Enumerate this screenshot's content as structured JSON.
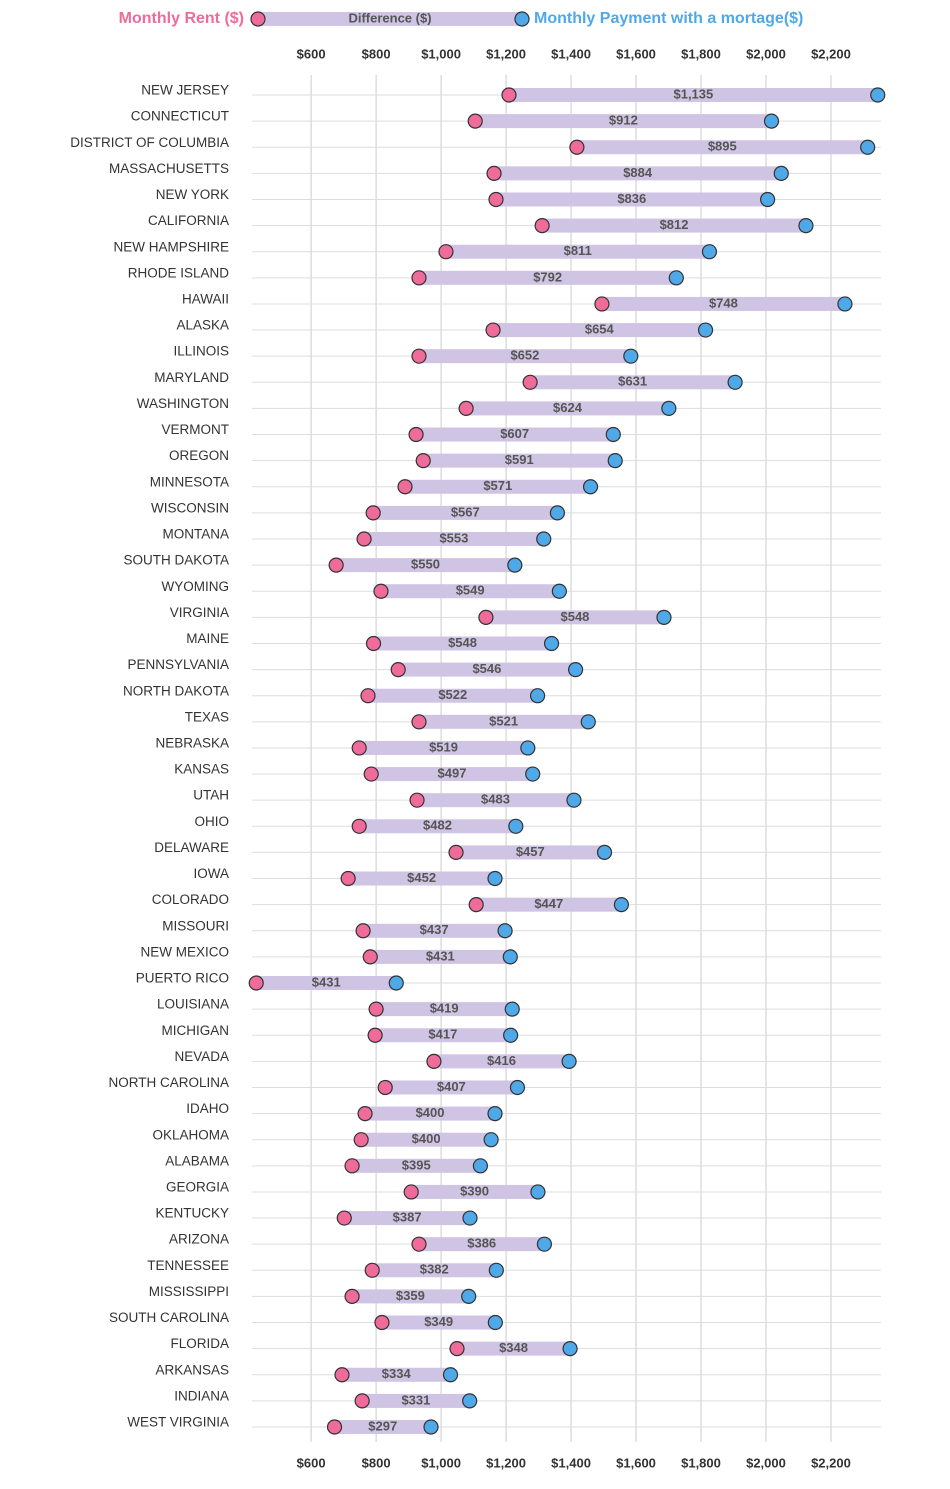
{
  "chart_data": {
    "type": "dumbbell",
    "categories": [
      "NEW JERSEY",
      "CONNECTICUT",
      "DISTRICT OF COLUMBIA",
      "MASSACHUSETTS",
      "NEW YORK",
      "CALIFORNIA",
      "NEW HAMPSHIRE",
      "RHODE ISLAND",
      "HAWAII",
      "ALASKA",
      "ILLINOIS",
      "MARYLAND",
      "WASHINGTON",
      "VERMONT",
      "OREGON",
      "MINNESOTA",
      "WISCONSIN",
      "MONTANA",
      "SOUTH DAKOTA",
      "WYOMING",
      "VIRGINIA",
      "MAINE",
      "PENNSYLVANIA",
      "NORTH DAKOTA",
      "TEXAS",
      "NEBRASKA",
      "KANSAS",
      "UTAH",
      "OHIO",
      "DELAWARE",
      "IOWA",
      "COLORADO",
      "MISSOURI",
      "NEW MEXICO",
      "PUERTO RICO",
      "LOUISIANA",
      "MICHIGAN",
      "NEVADA",
      "NORTH CAROLINA",
      "IDAHO",
      "OKLAHOMA",
      "ALABAMA",
      "GEORGIA",
      "KENTUCKY",
      "ARIZONA",
      "TENNESSEE",
      "MISSISSIPPI",
      "SOUTH CAROLINA",
      "FLORIDA",
      "ARKANSAS",
      "INDIANA",
      "WEST VIRGINIA"
    ],
    "series": [
      {
        "name": "Monthly Rent ($)",
        "color": "#ef6b9a",
        "values": [
          1209,
          1105,
          1418,
          1163,
          1169,
          1311,
          1015,
          932,
          1495,
          1160,
          932,
          1274,
          1077,
          923,
          945,
          889,
          791,
          763,
          677,
          815,
          1138,
          792,
          868,
          775,
          932,
          748,
          785,
          926,
          748,
          1046,
          714,
          1108,
          760,
          782,
          431,
          800,
          797,
          978,
          828,
          766,
          754,
          726,
          908,
          702,
          932,
          788,
          726,
          818,
          1049,
          695,
          757,
          672
        ]
      },
      {
        "name": "Difference ($)",
        "color": "#cfc4e3",
        "values": [
          1135,
          912,
          895,
          884,
          836,
          812,
          811,
          792,
          748,
          654,
          652,
          631,
          624,
          607,
          591,
          571,
          567,
          553,
          550,
          549,
          548,
          548,
          546,
          522,
          521,
          519,
          497,
          483,
          482,
          457,
          452,
          447,
          437,
          431,
          431,
          419,
          417,
          416,
          407,
          400,
          400,
          395,
          390,
          387,
          386,
          382,
          359,
          349,
          348,
          334,
          331,
          297
        ],
        "value_labels": [
          "$1,135",
          "$912",
          "$895",
          "$884",
          "$836",
          "$812",
          "$811",
          "$792",
          "$748",
          "$654",
          "$652",
          "$631",
          "$624",
          "$607",
          "$591",
          "$571",
          "$567",
          "$553",
          "$550",
          "$549",
          "$548",
          "$548",
          "$546",
          "$522",
          "$521",
          "$519",
          "$497",
          "$483",
          "$482",
          "$457",
          "$452",
          "$447",
          "$437",
          "$431",
          "$431",
          "$419",
          "$417",
          "$416",
          "$407",
          "$400",
          "$400",
          "$395",
          "$390",
          "$387",
          "$386",
          "$382",
          "$359",
          "$349",
          "$348",
          "$334",
          "$331",
          "$297"
        ]
      },
      {
        "name": "Monthly Payment with a mortage($)",
        "color": "#4fa8e8",
        "values": [
          2344,
          2017,
          2313,
          2047,
          2005,
          2123,
          1826,
          1724,
          2243,
          1814,
          1584,
          1905,
          1701,
          1530,
          1536,
          1460,
          1358,
          1316,
          1227,
          1364,
          1686,
          1340,
          1414,
          1297,
          1453,
          1267,
          1282,
          1409,
          1230,
          1503,
          1166,
          1555,
          1197,
          1213,
          862,
          1219,
          1214,
          1394,
          1235,
          1166,
          1154,
          1121,
          1298,
          1089,
          1318,
          1170,
          1085,
          1167,
          1397,
          1029,
          1088,
          969
        ]
      }
    ],
    "xlim": [
      418,
      2354
    ],
    "xticks": [
      {
        "value": 600,
        "label": "$600"
      },
      {
        "value": 800,
        "label": "$800"
      },
      {
        "value": 1000,
        "label": "$1,000"
      },
      {
        "value": 1200,
        "label": "$1,200"
      },
      {
        "value": 1400,
        "label": "$1,400"
      },
      {
        "value": 1600,
        "label": "$1,600"
      },
      {
        "value": 1800,
        "label": "$1,800"
      },
      {
        "value": 2000,
        "label": "$2,000"
      },
      {
        "value": 2200,
        "label": "$2,200"
      }
    ],
    "grid": true
  }
}
